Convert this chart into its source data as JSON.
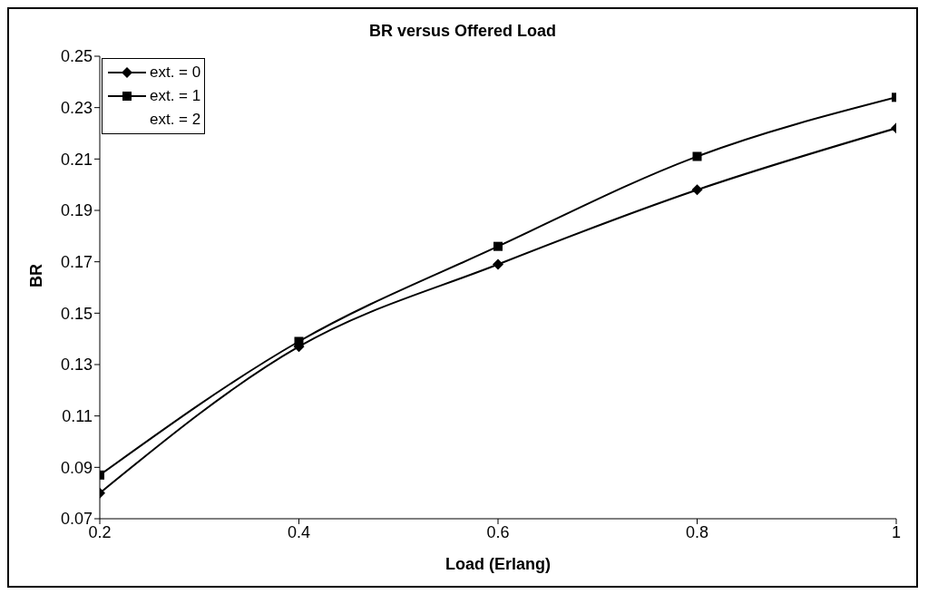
{
  "chart_data": {
    "type": "line",
    "title": "BR versus Offered Load",
    "xlabel": "Load (Erlang)",
    "ylabel": "BR",
    "x": [
      0.2,
      0.4,
      0.6,
      0.8,
      1
    ],
    "series": [
      {
        "name": "ext. = 0",
        "color": "#000000",
        "marker": "diamond",
        "values": [
          0.08,
          0.137,
          0.169,
          0.198,
          0.222
        ]
      },
      {
        "name": "ext. = 1",
        "color": "#000000",
        "marker": "square",
        "values": [
          0.087,
          0.139,
          0.176,
          0.211,
          0.234
        ]
      },
      {
        "name": "ext. = 2",
        "values": [
          null,
          null,
          null,
          null,
          null
        ]
      }
    ],
    "xlim": [
      0.2,
      1
    ],
    "xticks": [
      0.2,
      0.4,
      0.6,
      0.8,
      1
    ],
    "ylim": [
      0.07,
      0.25
    ],
    "yticks": [
      0.07,
      0.09,
      0.11,
      0.13,
      0.15,
      0.17,
      0.19,
      0.21,
      0.23,
      0.25
    ],
    "grid": false,
    "legend": "top left"
  }
}
